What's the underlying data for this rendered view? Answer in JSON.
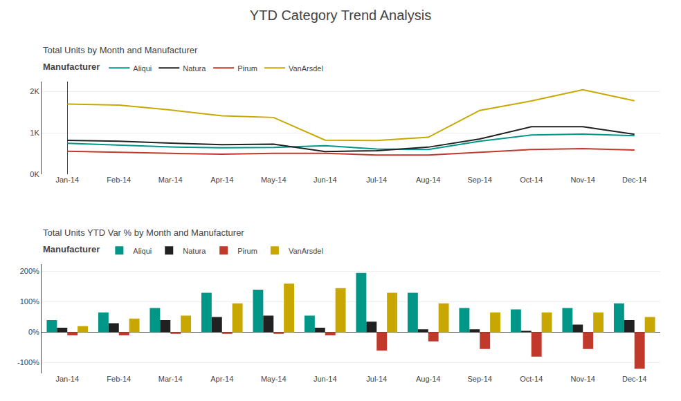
{
  "title": "YTD Category Trend Analysis",
  "chart_data": [
    {
      "type": "line",
      "title": "Total Units by Month and Manufacturer",
      "legend_title": "Manufacturer",
      "legend": "top",
      "grid": true,
      "categories": [
        "Jan-14",
        "Feb-14",
        "Mar-14",
        "Apr-14",
        "May-14",
        "Jun-14",
        "Jul-14",
        "Aug-14",
        "Sep-14",
        "Oct-14",
        "Nov-14",
        "Dec-14"
      ],
      "series": [
        {
          "name": "Aliqui",
          "color": "#009688",
          "values": [
            750,
            710,
            660,
            640,
            650,
            690,
            610,
            600,
            800,
            950,
            970,
            935
          ]
        },
        {
          "name": "Natura",
          "color": "#212121",
          "values": [
            820,
            800,
            755,
            715,
            730,
            550,
            570,
            655,
            855,
            1150,
            1150,
            965
          ]
        },
        {
          "name": "Pirum",
          "color": "#c0392b",
          "values": [
            555,
            525,
            505,
            485,
            505,
            505,
            465,
            465,
            535,
            598,
            618,
            585
          ]
        },
        {
          "name": "VanArsdel",
          "color": "#c8a800",
          "values": [
            1700,
            1675,
            1555,
            1415,
            1375,
            825,
            815,
            895,
            1545,
            1775,
            2045,
            1780
          ]
        }
      ],
      "ylim": [
        0,
        2250
      ],
      "yticks": [
        {
          "value": 0,
          "label": "0K"
        },
        {
          "value": 1000,
          "label": "1K"
        },
        {
          "value": 2000,
          "label": "2K"
        }
      ]
    },
    {
      "type": "bar",
      "title": "Total Units YTD Var % by Month and Manufacturer",
      "legend_title": "Manufacturer",
      "legend": "top",
      "grid": true,
      "categories": [
        "Jan-14",
        "Feb-14",
        "Mar-14",
        "Apr-14",
        "May-14",
        "Jun-14",
        "Jul-14",
        "Aug-14",
        "Sep-14",
        "Oct-14",
        "Nov-14",
        "Dec-14"
      ],
      "series": [
        {
          "name": "Aliqui",
          "color": "#009688",
          "values": [
            40,
            65,
            80,
            130,
            140,
            55,
            195,
            130,
            80,
            75,
            80,
            95
          ]
        },
        {
          "name": "Natura",
          "color": "#212121",
          "values": [
            15,
            30,
            40,
            50,
            55,
            15,
            35,
            10,
            10,
            5,
            25,
            40
          ]
        },
        {
          "name": "Pirum",
          "color": "#c0392b",
          "values": [
            -10,
            -10,
            -5,
            -5,
            -5,
            -10,
            -60,
            -30,
            -55,
            -80,
            -55,
            -120
          ]
        },
        {
          "name": "VanArsdel",
          "color": "#c8a800",
          "values": [
            20,
            45,
            55,
            95,
            160,
            145,
            130,
            95,
            65,
            65,
            65,
            50
          ]
        }
      ],
      "ylim": [
        -135,
        225
      ],
      "yticks": [
        {
          "value": -100,
          "label": "-100%"
        },
        {
          "value": 0,
          "label": "0%"
        },
        {
          "value": 100,
          "label": "100%"
        },
        {
          "value": 200,
          "label": "200%"
        }
      ]
    }
  ]
}
